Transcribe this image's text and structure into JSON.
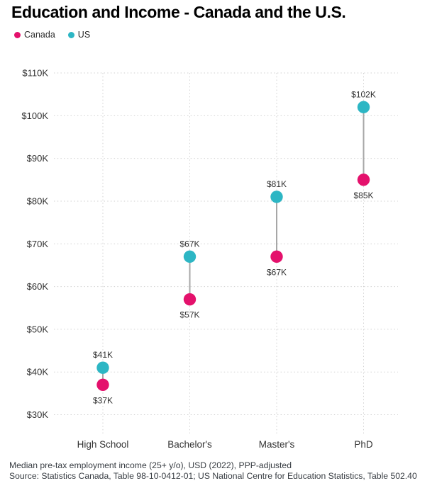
{
  "title": "Education and Income - Canada and the U.S.",
  "legend": {
    "items": [
      {
        "label": "Canada",
        "color": "#E4116C"
      },
      {
        "label": "US",
        "color": "#2DB6C4"
      }
    ]
  },
  "chart_data": {
    "type": "scatter",
    "subtype": "dumbbell-dot-plot",
    "title": "Education and Income - Canada and the U.S.",
    "categories": [
      "High School",
      "Bachelor's",
      "Master's",
      "PhD"
    ],
    "series": [
      {
        "name": "Canada",
        "color": "#E4116C",
        "values": [
          37,
          57,
          67,
          85
        ],
        "labels": [
          "$37K",
          "$57K",
          "$67K",
          "$85K"
        ],
        "label_position": "below"
      },
      {
        "name": "US",
        "color": "#2DB6C4",
        "values": [
          41,
          67,
          81,
          102
        ],
        "labels": [
          "$41K",
          "$67K",
          "$81K",
          "$102K"
        ],
        "label_position": "above"
      }
    ],
    "y_axis": {
      "unit": "USD",
      "min": 30,
      "max": 110,
      "ticks": [
        110,
        100,
        90,
        80,
        70,
        60,
        50,
        40,
        30
      ],
      "tick_labels": [
        "$110K",
        "$100K",
        "$90K",
        "$80K",
        "$70K",
        "$60K",
        "$50K",
        "$40K",
        "$30K"
      ]
    },
    "grid": "dotted horizontal and vertical",
    "connector_color": "#A7A7A7",
    "legend_position": "top-left"
  },
  "footer": {
    "line1": "Median pre-tax employment income (25+ y/o), USD (2022), PPP-adjusted",
    "line2": "Source: Statistics Canada, Table 98-10-0412-01; US National Centre for Education Statistics, Table 502.40"
  }
}
